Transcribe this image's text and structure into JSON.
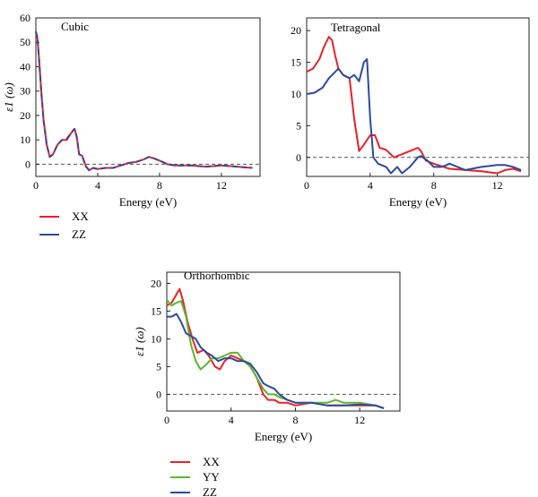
{
  "colors": {
    "XX": "#e8212a",
    "YY": "#5db52e",
    "ZZ": "#2c4a9e",
    "zero_line": "#555555",
    "axis": "#231f20"
  },
  "chart_data": [
    {
      "type": "line",
      "title": "Cubic",
      "xlabel": "Energy (eV)",
      "ylabel": "ε1 (ω)",
      "xlim": [
        0,
        14.5
      ],
      "ylim": [
        -5,
        60
      ],
      "x_ticks": [
        "0",
        "4",
        "8",
        "12"
      ],
      "y_ticks": [
        "0",
        "10",
        "20",
        "30",
        "40",
        "50",
        "60"
      ],
      "reference_line": 0,
      "legend": [
        "XX",
        "ZZ"
      ],
      "series": [
        {
          "name": "XX",
          "x": [
            0,
            0.1,
            0.2,
            0.35,
            0.5,
            0.7,
            0.9,
            1.1,
            1.4,
            1.7,
            2.0,
            2.3,
            2.5,
            2.65,
            2.8,
            3.0,
            3.1,
            3.25,
            3.45,
            3.7,
            4.0,
            4.5,
            5.0,
            5.5,
            6.0,
            6.5,
            7.0,
            7.3,
            7.6,
            8.0,
            8.5,
            9.0,
            10.0,
            11.0,
            12.0,
            13.0,
            14.0
          ],
          "y": [
            54,
            52,
            44,
            30,
            18,
            8,
            3,
            4,
            8,
            10,
            10,
            13,
            14.5,
            11,
            4,
            3.5,
            1.5,
            -1,
            -2.5,
            -1.5,
            -2,
            -1.5,
            -1.5,
            -0.5,
            0.5,
            1,
            2,
            3,
            2.5,
            1.5,
            0,
            -0.5,
            -0.5,
            -1,
            -0.5,
            -1,
            -1.5
          ]
        },
        {
          "name": "ZZ",
          "x": [
            0,
            0.1,
            0.2,
            0.35,
            0.5,
            0.7,
            0.9,
            1.1,
            1.4,
            1.7,
            2.0,
            2.3,
            2.5,
            2.65,
            2.8,
            3.0,
            3.1,
            3.25,
            3.45,
            3.7,
            4.0,
            4.5,
            5.0,
            5.5,
            6.0,
            6.5,
            7.0,
            7.3,
            7.6,
            8.0,
            8.5,
            9.0,
            10.0,
            11.0,
            12.0,
            13.0,
            14.0
          ],
          "y": [
            54.5,
            52,
            44,
            30,
            18,
            8,
            3,
            4,
            8,
            10,
            10.5,
            13,
            14.5,
            11,
            4,
            3.5,
            1.5,
            -1,
            -2.5,
            -1.5,
            -2,
            -1.5,
            -1.5,
            -0.5,
            0.5,
            1,
            2,
            3,
            2.5,
            1.5,
            0,
            -0.5,
            -0.5,
            -1,
            -0.5,
            -1,
            -1.5
          ]
        }
      ]
    },
    {
      "type": "line",
      "title": "Tetragonal",
      "xlabel": "Energy (eV)",
      "ylabel": "",
      "xlim": [
        0,
        14
      ],
      "ylim": [
        -3,
        22
      ],
      "x_ticks": [
        "0",
        "4",
        "8",
        "12"
      ],
      "y_ticks": [
        "0",
        "5",
        "10",
        "15",
        "20"
      ],
      "reference_line": 0,
      "series": [
        {
          "name": "XX",
          "x": [
            0,
            0.4,
            0.8,
            1.1,
            1.4,
            1.6,
            1.8,
            2.0,
            2.3,
            2.7,
            3.0,
            3.3,
            3.6,
            4.0,
            4.3,
            4.6,
            5.0,
            5.5,
            6.0,
            6.5,
            7.0,
            7.2,
            7.5,
            8.0,
            9.0,
            10.0,
            11.0,
            12.0,
            12.5,
            13.0,
            13.5
          ],
          "y": [
            13.5,
            14,
            15.5,
            17.5,
            19,
            18.5,
            16,
            14,
            13,
            12.5,
            6,
            1,
            2,
            3.5,
            3.5,
            1.5,
            1.2,
            0,
            0.5,
            1,
            1.5,
            1,
            -0.5,
            -1,
            -1.8,
            -2,
            -2.2,
            -2.5,
            -2,
            -1.8,
            -2.2
          ]
        },
        {
          "name": "ZZ",
          "x": [
            0,
            0.5,
            1.0,
            1.4,
            1.8,
            2.0,
            2.3,
            2.7,
            3.0,
            3.3,
            3.6,
            3.8,
            4.0,
            4.2,
            4.5,
            5.0,
            5.3,
            5.7,
            6.0,
            6.5,
            7.0,
            7.2,
            7.6,
            8.0,
            8.5,
            9.0,
            9.5,
            10.0,
            11.0,
            12.0,
            12.5,
            13.0,
            13.5
          ],
          "y": [
            10,
            10.2,
            11,
            12.5,
            13.5,
            14,
            13,
            12.5,
            13,
            12,
            15,
            15.5,
            6,
            0,
            -1,
            -1.5,
            -2.5,
            -1.5,
            -2.5,
            -1.5,
            0,
            0.2,
            -0.5,
            -1.5,
            -1.5,
            -1,
            -1.5,
            -2,
            -1.5,
            -1.2,
            -1.2,
            -1.5,
            -2
          ]
        }
      ]
    },
    {
      "type": "line",
      "title": "Orthorhombic",
      "xlabel": "Energy (eV)",
      "ylabel": "ε1 (ω)",
      "xlim": [
        0,
        14.5
      ],
      "ylim": [
        -3,
        22
      ],
      "x_ticks": [
        "0",
        "4",
        "8",
        "12"
      ],
      "y_ticks": [
        "0",
        "5",
        "10",
        "15",
        "20"
      ],
      "reference_line": 0,
      "legend": [
        "XX",
        "YY",
        "ZZ"
      ],
      "series": [
        {
          "name": "XX",
          "x": [
            0,
            0.3,
            0.6,
            0.8,
            1.0,
            1.3,
            1.6,
            1.9,
            2.3,
            2.6,
            3.0,
            3.3,
            3.6,
            4.0,
            4.4,
            4.8,
            5.2,
            5.6,
            6.0,
            6.3,
            6.7,
            7.0,
            7.5,
            8.0,
            9.0,
            10.0,
            11.0,
            12.0,
            13.0,
            13.5
          ],
          "y": [
            16,
            16.5,
            18,
            19,
            17,
            13,
            10,
            7.5,
            8,
            7,
            5,
            4.5,
            6,
            7,
            6.5,
            6,
            5,
            3,
            0,
            -1,
            -1,
            -1.5,
            -1.5,
            -2,
            -1.5,
            -2,
            -2,
            -2,
            -2,
            -2.5
          ]
        },
        {
          "name": "YY",
          "x": [
            0,
            0.3,
            0.6,
            0.9,
            1.2,
            1.5,
            1.8,
            2.1,
            2.5,
            2.8,
            3.2,
            3.6,
            4.0,
            4.4,
            4.8,
            5.2,
            5.6,
            6.0,
            6.3,
            6.7,
            7.0,
            7.5,
            8.0,
            9.0,
            10.0,
            10.5,
            11.0,
            12.0,
            13.0,
            13.5
          ],
          "y": [
            17,
            16,
            16.5,
            16.8,
            14,
            9,
            6,
            4.5,
            5.5,
            6.5,
            6.5,
            7,
            7.5,
            7.5,
            6,
            5,
            3,
            1,
            0,
            0,
            -0.5,
            -1,
            -1.5,
            -1.5,
            -1.5,
            -1,
            -1.5,
            -1.5,
            -2,
            -2.5
          ]
        },
        {
          "name": "ZZ",
          "x": [
            0,
            0.3,
            0.6,
            0.9,
            1.2,
            1.5,
            1.8,
            2.1,
            2.5,
            2.8,
            3.2,
            3.6,
            4.0,
            4.4,
            4.8,
            5.2,
            5.6,
            6.0,
            6.3,
            6.7,
            7.0,
            7.5,
            8.0,
            9.0,
            10.0,
            11.0,
            12.0,
            13.0,
            13.5
          ],
          "y": [
            14,
            14,
            14.5,
            13,
            11,
            10.5,
            10,
            8.5,
            7.5,
            7,
            6,
            6.5,
            6.5,
            6,
            6,
            5.5,
            4,
            2,
            1.5,
            1,
            0,
            -1,
            -1.5,
            -1.5,
            -2,
            -2,
            -1.8,
            -2,
            -2.5
          ]
        }
      ]
    }
  ]
}
